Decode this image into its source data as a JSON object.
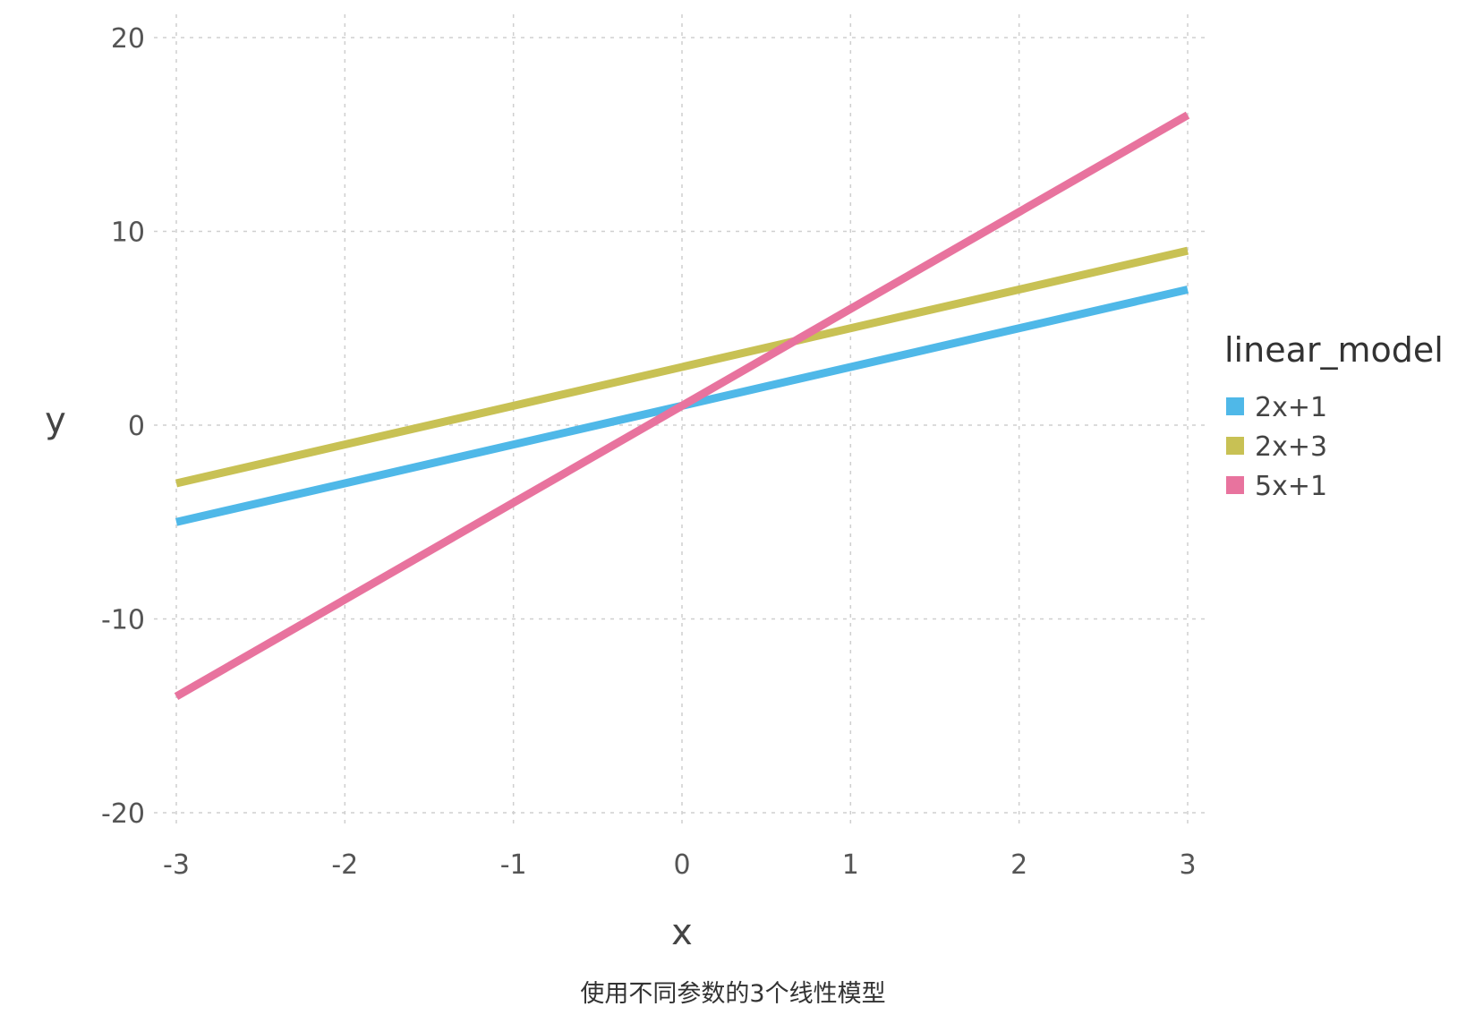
{
  "chart_data": {
    "type": "line",
    "x": [
      -3,
      3
    ],
    "series": [
      {
        "name": "2x+1",
        "values": [
          -5,
          7
        ],
        "color": "#4fb8e8"
      },
      {
        "name": "2x+3",
        "values": [
          -3,
          9
        ],
        "color": "#c8c154"
      },
      {
        "name": "5x+1",
        "values": [
          -14,
          16
        ],
        "color": "#e8739e"
      }
    ],
    "xlabel": "x",
    "ylabel": "y",
    "xlim": [
      -3,
      3
    ],
    "ylim": [
      -20,
      20
    ],
    "xticks": [
      -3,
      -2,
      -1,
      0,
      1,
      2,
      3
    ],
    "yticks": [
      -20,
      -10,
      0,
      10,
      20
    ],
    "grid": true,
    "legend_title": "linear_model",
    "legend_position": "right"
  },
  "caption": "使用不同参数的3个线性模型"
}
